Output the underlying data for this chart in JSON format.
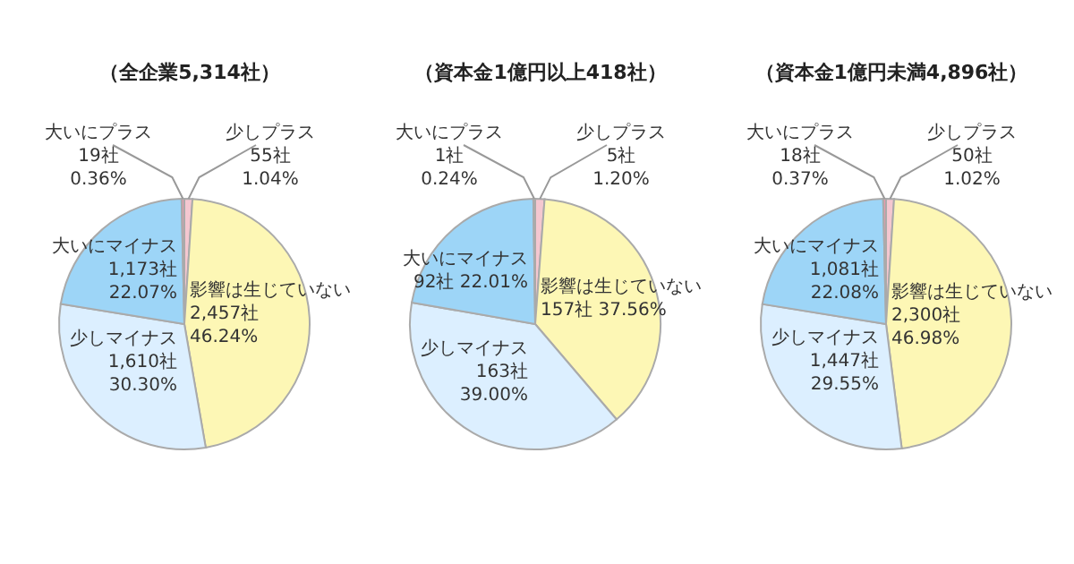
{
  "chart_data": [
    {
      "type": "pie",
      "title": "（全企業5,314社）",
      "categories": [
        "少しプラス",
        "影響は生じていない",
        "少しマイナス",
        "大いにマイナス",
        "大いにプラス"
      ],
      "values": [
        55,
        2457,
        1610,
        1173,
        19
      ],
      "colors": [
        "#f4c7d0",
        "#fdf7b5",
        "#dcefff",
        "#9dd5f7",
        "#e89aac"
      ],
      "value_labels": [
        "55社\n1.04%",
        "2,457社\n46.24%",
        "1,610社\n30.30%",
        "1,173社\n22.07%",
        "19社\n0.36%"
      ]
    },
    {
      "type": "pie",
      "title": "（資本金1億円以上418社）",
      "categories": [
        "少しプラス",
        "影響は生じていない",
        "少しマイナス",
        "大いにマイナス",
        "大いにプラス"
      ],
      "values": [
        5,
        157,
        163,
        92,
        1
      ],
      "colors": [
        "#f4c7d0",
        "#fdf7b5",
        "#dcefff",
        "#9dd5f7",
        "#e89aac"
      ],
      "value_labels": [
        "5社\n1.20%",
        "157社 37.56%",
        "163社\n39.00%",
        "92社 22.01%",
        "1社\n0.24%"
      ]
    },
    {
      "type": "pie",
      "title": "（資本金1億円未満4,896社）",
      "categories": [
        "少しプラス",
        "影響は生じていない",
        "少しマイナス",
        "大いにマイナス",
        "大いにプラス"
      ],
      "values": [
        50,
        2300,
        1447,
        1081,
        18
      ],
      "colors": [
        "#f4c7d0",
        "#fdf7b5",
        "#dcefff",
        "#9dd5f7",
        "#e89aac"
      ],
      "value_labels": [
        "50社\n1.02%",
        "2,300社\n46.98%",
        "1,447社\n29.55%",
        "1,081社\n22.08%",
        "18社\n0.37%"
      ]
    }
  ]
}
